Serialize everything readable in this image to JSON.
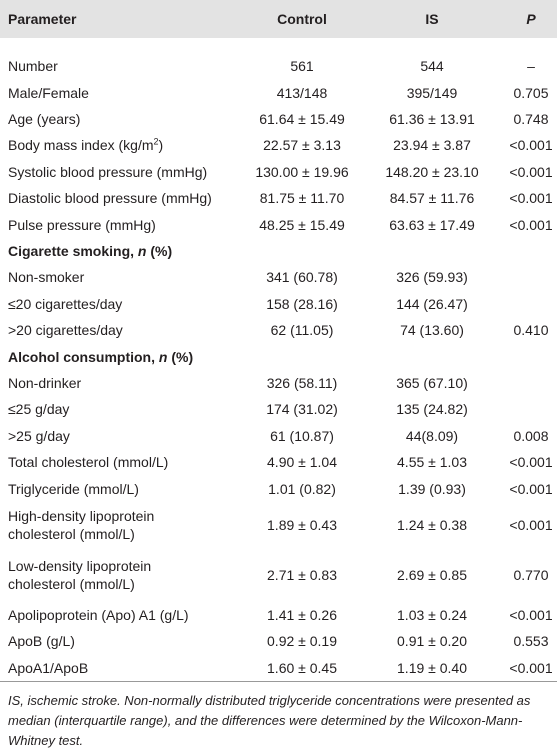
{
  "table": {
    "header": [
      "Parameter",
      "Control",
      "IS",
      "P"
    ],
    "rows": [
      {
        "label": "Number",
        "control": "561",
        "is": "544",
        "p": "–"
      },
      {
        "label": "Male/Female",
        "control": "413/148",
        "is": "395/149",
        "p": "0.705"
      },
      {
        "label": "Age (years)",
        "control": "61.64 ± 15.49",
        "is": "61.36 ± 13.91",
        "p": "0.748"
      },
      {
        "label": [
          "Body mass index (kg/m",
          {
            "sup": "2"
          },
          ")"
        ],
        "control": "22.57 ± 3.13",
        "is": "23.94 ± 3.87",
        "p": "<0.001"
      },
      {
        "label": "Systolic blood pressure (mmHg)",
        "control": "130.00 ± 19.96",
        "is": "148.20 ± 23.10",
        "p": "<0.001"
      },
      {
        "label": "Diastolic blood pressure (mmHg)",
        "control": "81.75 ± 11.70",
        "is": "84.57 ± 11.76",
        "p": "<0.001"
      },
      {
        "label": "Pulse pressure (mmHg)",
        "control": "48.25 ± 15.49",
        "is": "63.63 ± 17.49",
        "p": "<0.001"
      },
      {
        "label": [
          "Cigarette smoking, ",
          {
            "i": "n"
          },
          " (%)"
        ]
      },
      {
        "label": "Non-smoker",
        "control": "341 (60.78)",
        "is": "326 (59.93)"
      },
      {
        "label": "≤20 cigarettes/day",
        "control": "158 (28.16)",
        "is": "144 (26.47)"
      },
      {
        "label": ">20 cigarettes/day",
        "control": "62 (11.05)",
        "is": "74 (13.60)",
        "p": "0.410"
      },
      {
        "label": [
          "Alcohol consumption, ",
          {
            "i": "n"
          },
          " (%)"
        ]
      },
      {
        "label": "Non-drinker",
        "control": "326 (58.11)",
        "is": "365 (67.10)"
      },
      {
        "label": "≤25 g/day",
        "control": "174 (31.02)",
        "is": "135 (24.82)"
      },
      {
        "label": ">25 g/day",
        "control": "61 (10.87)",
        "is": "44(8.09)",
        "p": "0.008"
      },
      {
        "label": "Total cholesterol (mmol/L)",
        "control": "4.90 ± 1.04",
        "is": "4.55 ± 1.03",
        "p": "<0.001"
      },
      {
        "label": "Triglyceride (mmol/L)",
        "control": "1.01 (0.82)",
        "is": "1.39 (0.93)",
        "p": "<0.001"
      },
      {
        "label_lines": [
          "High-density lipoprotein",
          "cholesterol (mmol/L)"
        ],
        "control": "1.89 ± 0.43",
        "is": "1.24 ± 0.38",
        "p": "<0.001"
      },
      {
        "label_lines": [
          "Low-density lipoprotein",
          "cholesterol (mmol/L)"
        ],
        "control": "2.71 ± 0.83",
        "is": "2.69 ± 0.85",
        "p": "0.770"
      },
      {
        "label": "Apolipoprotein (Apo) A1 (g/L)",
        "control": "1.41 ± 0.26",
        "is": "1.03 ± 0.24",
        "p": "<0.001"
      },
      {
        "label": "ApoB (g/L)",
        "control": "0.92 ± 0.19",
        "is": "0.91 ± 0.20",
        "p": "0.553"
      },
      {
        "label": "ApoA1/ApoB",
        "control": "1.60 ± 0.45",
        "is": "1.19 ± 0.40",
        "p": "<0.001"
      }
    ],
    "footnote": "IS, ischemic stroke. Non-normally distributed triglyceride concentrations were presented as median (interquartile range), and the differences were determined by the Wilcoxon-Mann-Whitney test."
  }
}
